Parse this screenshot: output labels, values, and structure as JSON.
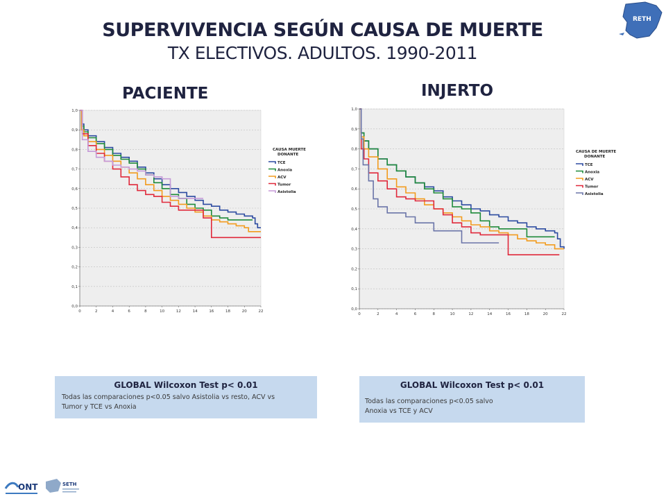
{
  "header": {
    "title": "SUPERVIVENCIA SEGÚN CAUSA DE MUERTE",
    "subtitle": "TX ELECTIVOS. ADULTOS. 1990-2011"
  },
  "logos": {
    "corner_map_label": "RETH",
    "bottom_left_1": "ONT",
    "bottom_left_2": "SETH"
  },
  "colors": {
    "TCE": "#2b4aa0",
    "Anoxia": "#1e8a3a",
    "ACV": "#f29b1d",
    "Tumor": "#e0283a",
    "Asistolia": "#c59ad8",
    "Asistolia_injerto": "#6a74a8",
    "plot_bg": "#eeeeee",
    "title": "#1f2340"
  },
  "chart_data": [
    {
      "type": "line",
      "title": "PACIENTE",
      "xlabel": "",
      "ylabel": "",
      "xlim": [
        0,
        22
      ],
      "ylim": [
        0,
        1
      ],
      "x_ticks": [
        "0",
        "2",
        "4",
        "6",
        "8",
        "10",
        "12",
        "14",
        "16",
        "18",
        "20",
        "22"
      ],
      "y_ticks": [
        "0,0",
        "0,1",
        "0,2",
        "0,3",
        "0,4",
        "0,5",
        "0,6",
        "0,7",
        "0,8",
        "0,9",
        "1,0"
      ],
      "grid": "horizontal dashed",
      "legend_title": "CAUSA MUERTE DONANTE",
      "legend_position": "right",
      "series": [
        {
          "name": "TCE",
          "color_key": "TCE",
          "points": [
            [
              0,
              1.0
            ],
            [
              0.2,
              0.93
            ],
            [
              0.5,
              0.9
            ],
            [
              1,
              0.87
            ],
            [
              2,
              0.84
            ],
            [
              3,
              0.81
            ],
            [
              4,
              0.78
            ],
            [
              5,
              0.76
            ],
            [
              6,
              0.74
            ],
            [
              7,
              0.71
            ],
            [
              8,
              0.68
            ],
            [
              9,
              0.65
            ],
            [
              10,
              0.62
            ],
            [
              11,
              0.6
            ],
            [
              12,
              0.58
            ],
            [
              13,
              0.56
            ],
            [
              14,
              0.54
            ],
            [
              15,
              0.52
            ],
            [
              16,
              0.51
            ],
            [
              17,
              0.49
            ],
            [
              18,
              0.48
            ],
            [
              19,
              0.47
            ],
            [
              20,
              0.46
            ],
            [
              21,
              0.45
            ],
            [
              21.3,
              0.42
            ],
            [
              21.6,
              0.4
            ],
            [
              22,
              0.4
            ]
          ]
        },
        {
          "name": "Anoxia",
          "color_key": "Anoxia",
          "points": [
            [
              0,
              1.0
            ],
            [
              0.2,
              0.92
            ],
            [
              0.5,
              0.89
            ],
            [
              1,
              0.86
            ],
            [
              2,
              0.83
            ],
            [
              3,
              0.8
            ],
            [
              4,
              0.77
            ],
            [
              5,
              0.75
            ],
            [
              6,
              0.73
            ],
            [
              7,
              0.7
            ],
            [
              8,
              0.67
            ],
            [
              9,
              0.63
            ],
            [
              10,
              0.6
            ],
            [
              11,
              0.57
            ],
            [
              12,
              0.55
            ],
            [
              13,
              0.52
            ],
            [
              14,
              0.5
            ],
            [
              15,
              0.49
            ],
            [
              16,
              0.46
            ],
            [
              17,
              0.45
            ],
            [
              18,
              0.44
            ],
            [
              19,
              0.44
            ],
            [
              20,
              0.44
            ],
            [
              21,
              0.44
            ]
          ]
        },
        {
          "name": "ACV",
          "color_key": "ACV",
          "points": [
            [
              0,
              1.0
            ],
            [
              0.2,
              0.9
            ],
            [
              0.5,
              0.87
            ],
            [
              1,
              0.84
            ],
            [
              2,
              0.8
            ],
            [
              3,
              0.77
            ],
            [
              4,
              0.74
            ],
            [
              5,
              0.71
            ],
            [
              6,
              0.68
            ],
            [
              7,
              0.65
            ],
            [
              8,
              0.62
            ],
            [
              9,
              0.59
            ],
            [
              10,
              0.56
            ],
            [
              11,
              0.54
            ],
            [
              12,
              0.52
            ],
            [
              13,
              0.5
            ],
            [
              14,
              0.48
            ],
            [
              15,
              0.46
            ],
            [
              16,
              0.44
            ],
            [
              17,
              0.43
            ],
            [
              18,
              0.42
            ],
            [
              19,
              0.41
            ],
            [
              20,
              0.4
            ],
            [
              20.5,
              0.38
            ],
            [
              22,
              0.38
            ]
          ]
        },
        {
          "name": "Tumor",
          "color_key": "Tumor",
          "points": [
            [
              0,
              1.0
            ],
            [
              0.3,
              0.88
            ],
            [
              1,
              0.82
            ],
            [
              2,
              0.78
            ],
            [
              3,
              0.74
            ],
            [
              4,
              0.7
            ],
            [
              5,
              0.66
            ],
            [
              6,
              0.62
            ],
            [
              7,
              0.59
            ],
            [
              8,
              0.57
            ],
            [
              9,
              0.56
            ],
            [
              10,
              0.53
            ],
            [
              11,
              0.51
            ],
            [
              12,
              0.49
            ],
            [
              13,
              0.49
            ],
            [
              14,
              0.49
            ],
            [
              15,
              0.45
            ],
            [
              16,
              0.35
            ],
            [
              18,
              0.35
            ],
            [
              20,
              0.35
            ],
            [
              22,
              0.35
            ]
          ]
        },
        {
          "name": "Asistolia",
          "color_key": "Asistolia",
          "points": [
            [
              0,
              1.0
            ],
            [
              0.3,
              0.85
            ],
            [
              1,
              0.79
            ],
            [
              2,
              0.76
            ],
            [
              3,
              0.74
            ],
            [
              4,
              0.72
            ],
            [
              5,
              0.71
            ],
            [
              6,
              0.7
            ],
            [
              7,
              0.69
            ],
            [
              8,
              0.67
            ],
            [
              9,
              0.66
            ],
            [
              10,
              0.65
            ],
            [
              11,
              0.56
            ],
            [
              12,
              0.55
            ],
            [
              13,
              0.55
            ],
            [
              14,
              0.55
            ],
            [
              15,
              0.55
            ]
          ]
        }
      ]
    },
    {
      "type": "line",
      "title": "INJERTO",
      "xlabel": "",
      "ylabel": "",
      "xlim": [
        0,
        22
      ],
      "ylim": [
        0,
        1
      ],
      "x_ticks": [
        "0",
        "2",
        "4",
        "6",
        "8",
        "10",
        "12",
        "14",
        "16",
        "18",
        "20",
        "22"
      ],
      "y_ticks": [
        "0,0",
        "0,1",
        "0,2",
        "0,3",
        "0,4",
        "0,5",
        "0,6",
        "0,7",
        "0,8",
        "0,9",
        "1,0"
      ],
      "grid": "horizontal dashed",
      "legend_title": "CAUSA DE MUERTE DONANTE",
      "legend_position": "right",
      "series": [
        {
          "name": "TCE",
          "color_key": "TCE",
          "points": [
            [
              0,
              1.0
            ],
            [
              0.2,
              0.88
            ],
            [
              0.5,
              0.84
            ],
            [
              1,
              0.8
            ],
            [
              2,
              0.75
            ],
            [
              3,
              0.72
            ],
            [
              4,
              0.69
            ],
            [
              5,
              0.66
            ],
            [
              6,
              0.63
            ],
            [
              7,
              0.61
            ],
            [
              8,
              0.59
            ],
            [
              9,
              0.56
            ],
            [
              10,
              0.54
            ],
            [
              11,
              0.52
            ],
            [
              12,
              0.5
            ],
            [
              13,
              0.49
            ],
            [
              14,
              0.47
            ],
            [
              15,
              0.46
            ],
            [
              16,
              0.44
            ],
            [
              17,
              0.43
            ],
            [
              18,
              0.41
            ],
            [
              19,
              0.4
            ],
            [
              20,
              0.39
            ],
            [
              21,
              0.38
            ],
            [
              21.3,
              0.35
            ],
            [
              21.6,
              0.31
            ],
            [
              22,
              0.3
            ]
          ]
        },
        {
          "name": "Anoxia",
          "color_key": "Anoxia",
          "points": [
            [
              0,
              1.0
            ],
            [
              0.2,
              0.88
            ],
            [
              0.5,
              0.84
            ],
            [
              1,
              0.8
            ],
            [
              2,
              0.75
            ],
            [
              3,
              0.72
            ],
            [
              4,
              0.69
            ],
            [
              5,
              0.66
            ],
            [
              6,
              0.63
            ],
            [
              7,
              0.6
            ],
            [
              8,
              0.58
            ],
            [
              9,
              0.55
            ],
            [
              10,
              0.51
            ],
            [
              11,
              0.5
            ],
            [
              12,
              0.48
            ],
            [
              13,
              0.44
            ],
            [
              14,
              0.41
            ],
            [
              15,
              0.4
            ],
            [
              16,
              0.4
            ],
            [
              17,
              0.4
            ],
            [
              18,
              0.36
            ],
            [
              19,
              0.36
            ],
            [
              20,
              0.36
            ],
            [
              21,
              0.36
            ]
          ]
        },
        {
          "name": "ACV",
          "color_key": "ACV",
          "points": [
            [
              0,
              1.0
            ],
            [
              0.2,
              0.86
            ],
            [
              0.5,
              0.8
            ],
            [
              1,
              0.76
            ],
            [
              2,
              0.7
            ],
            [
              3,
              0.65
            ],
            [
              4,
              0.61
            ],
            [
              5,
              0.58
            ],
            [
              6,
              0.55
            ],
            [
              7,
              0.52
            ],
            [
              8,
              0.5
            ],
            [
              9,
              0.48
            ],
            [
              10,
              0.46
            ],
            [
              11,
              0.44
            ],
            [
              12,
              0.42
            ],
            [
              13,
              0.41
            ],
            [
              14,
              0.39
            ],
            [
              15,
              0.38
            ],
            [
              16,
              0.37
            ],
            [
              17,
              0.35
            ],
            [
              18,
              0.34
            ],
            [
              19,
              0.33
            ],
            [
              20,
              0.32
            ],
            [
              21,
              0.3
            ],
            [
              22,
              0.3
            ]
          ]
        },
        {
          "name": "Tumor",
          "color_key": "Tumor",
          "points": [
            [
              0,
              1.0
            ],
            [
              0.2,
              0.8
            ],
            [
              0.5,
              0.75
            ],
            [
              1,
              0.68
            ],
            [
              2,
              0.64
            ],
            [
              3,
              0.6
            ],
            [
              4,
              0.56
            ],
            [
              5,
              0.55
            ],
            [
              6,
              0.54
            ],
            [
              7,
              0.54
            ],
            [
              8,
              0.5
            ],
            [
              9,
              0.47
            ],
            [
              10,
              0.43
            ],
            [
              11,
              0.41
            ],
            [
              12,
              0.38
            ],
            [
              13,
              0.37
            ],
            [
              14,
              0.37
            ],
            [
              15,
              0.37
            ],
            [
              16,
              0.27
            ],
            [
              18,
              0.27
            ],
            [
              20,
              0.27
            ],
            [
              21.5,
              0.27
            ]
          ]
        },
        {
          "name": "Asistolia",
          "color_key": "Asistolia_injerto",
          "points": [
            [
              0,
              1.0
            ],
            [
              0.2,
              0.85
            ],
            [
              0.4,
              0.72
            ],
            [
              1,
              0.64
            ],
            [
              1.5,
              0.55
            ],
            [
              2,
              0.51
            ],
            [
              3,
              0.48
            ],
            [
              4,
              0.48
            ],
            [
              5,
              0.46
            ],
            [
              6,
              0.43
            ],
            [
              7,
              0.43
            ],
            [
              8,
              0.39
            ],
            [
              9,
              0.39
            ],
            [
              10,
              0.39
            ],
            [
              11,
              0.33
            ],
            [
              12,
              0.33
            ],
            [
              13,
              0.33
            ],
            [
              14,
              0.33
            ],
            [
              15,
              0.33
            ]
          ]
        }
      ]
    }
  ],
  "stats": [
    {
      "title": "GLOBAL Wilcoxon Test p< 0.01",
      "line1": "Todas las comparaciones p<0.05 salvo Asistolia vs resto, ACV vs",
      "line2": "Tumor y TCE vs Anoxia"
    },
    {
      "title": "GLOBAL Wilcoxon Test p< 0.01",
      "line1": "Todas las comparaciones p<0.05 salvo",
      "line2": "Anoxia vs TCE y ACV"
    }
  ]
}
